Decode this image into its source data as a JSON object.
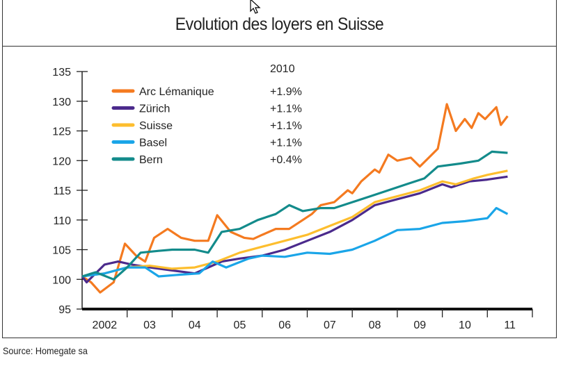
{
  "chart_data": {
    "type": "line",
    "title": "Evolution des loyers en Suisse",
    "source": "Source: Homegate sa",
    "xlabel": "",
    "ylabel": "",
    "ylim": [
      95,
      135
    ],
    "xlim": [
      2002,
      2012
    ],
    "yticks": [
      "95",
      "100",
      "105",
      "110",
      "115",
      "120",
      "125",
      "130",
      "135"
    ],
    "xtick_labels": [
      "2002",
      "03",
      "04",
      "05",
      "06",
      "07",
      "08",
      "09",
      "10",
      "11"
    ],
    "legend_header": "2010",
    "legend_position": "top-left",
    "grid": false,
    "series": [
      {
        "name": "Arc Lémanique",
        "change": "+1.9%",
        "color": "#F47A20",
        "x": [
          2002.0,
          2002.2,
          2002.4,
          2002.7,
          2002.95,
          2003.2,
          2003.4,
          2003.6,
          2003.9,
          2004.2,
          2004.5,
          2004.8,
          2005.0,
          2005.3,
          2005.6,
          2005.8,
          2006.0,
          2006.3,
          2006.6,
          2006.9,
          2007.1,
          2007.3,
          2007.6,
          2007.9,
          2008.0,
          2008.2,
          2008.5,
          2008.6,
          2008.8,
          2009.0,
          2009.3,
          2009.5,
          2009.7,
          2009.9,
          2010.1,
          2010.3,
          2010.5,
          2010.65,
          2010.8,
          2010.95,
          2011.2,
          2011.3,
          2011.45
        ],
        "y": [
          100.5,
          99.5,
          97.8,
          99.5,
          106,
          104,
          103,
          107,
          108.5,
          107,
          106.5,
          106.5,
          110.8,
          108,
          107,
          106.8,
          107.5,
          108.5,
          108.5,
          110,
          111,
          112.5,
          113,
          115,
          114.5,
          116.5,
          118.5,
          118,
          121,
          120,
          120.5,
          119,
          120.5,
          122,
          129.5,
          125,
          127,
          125.5,
          128,
          127,
          129,
          126,
          127.5
        ]
      },
      {
        "name": "Zürich",
        "change": "+1.1%",
        "color": "#4B2A8C",
        "x": [
          2002.0,
          2002.1,
          2002.5,
          2002.8,
          2003.1,
          2003.5,
          2004.0,
          2004.5,
          2004.8,
          2005.1,
          2005.5,
          2006.0,
          2006.5,
          2007.0,
          2007.5,
          2008.0,
          2008.5,
          2009.0,
          2009.5,
          2010.0,
          2010.2,
          2010.6,
          2011.0,
          2011.45
        ],
        "y": [
          100.5,
          99.5,
          102.5,
          103,
          102.5,
          102,
          101.5,
          101,
          102,
          103,
          103.5,
          104,
          105,
          106.5,
          108,
          110,
          112.5,
          113.5,
          114.5,
          116,
          115.5,
          116.5,
          116.8,
          117.3
        ]
      },
      {
        "name": "Suisse",
        "change": "+1.1%",
        "color": "#FDBE2E",
        "x": [
          2002.0,
          2002.5,
          2003.0,
          2003.5,
          2004.0,
          2004.5,
          2005.0,
          2005.5,
          2006.0,
          2006.5,
          2007.0,
          2007.5,
          2008.0,
          2008.5,
          2009.0,
          2009.5,
          2010.0,
          2010.3,
          2010.7,
          2011.0,
          2011.45
        ],
        "y": [
          100.5,
          101,
          102,
          102.3,
          101.8,
          102,
          103,
          104.5,
          105.5,
          106.5,
          107.5,
          109,
          110.5,
          113,
          114,
          115,
          116.5,
          116,
          117,
          117.6,
          118.3
        ]
      },
      {
        "name": "Basel",
        "change": "+1.1%",
        "color": "#1AA5E8",
        "x": [
          2002.0,
          2002.5,
          2003.0,
          2003.4,
          2003.7,
          2004.2,
          2004.6,
          2004.9,
          2005.2,
          2005.7,
          2006.0,
          2006.5,
          2007.0,
          2007.5,
          2008.0,
          2008.5,
          2009.0,
          2009.5,
          2010.0,
          2010.5,
          2011.0,
          2011.2,
          2011.45
        ],
        "y": [
          100.5,
          101,
          102,
          102,
          100.5,
          100.8,
          101,
          103,
          102,
          103.5,
          104,
          103.8,
          104.5,
          104.3,
          105,
          106.5,
          108.3,
          108.5,
          109.5,
          109.8,
          110.3,
          112,
          111
        ]
      },
      {
        "name": "Bern",
        "change": "+0.4%",
        "color": "#138B8B",
        "x": [
          2002.0,
          2002.3,
          2002.7,
          2003.0,
          2003.3,
          2003.7,
          2004.0,
          2004.5,
          2004.8,
          2005.1,
          2005.5,
          2005.9,
          2006.3,
          2006.6,
          2006.9,
          2007.3,
          2007.6,
          2008.0,
          2008.4,
          2008.8,
          2009.2,
          2009.6,
          2009.9,
          2010.4,
          2010.8,
          2011.1,
          2011.45
        ],
        "y": [
          100.5,
          101.2,
          100,
          102,
          104.5,
          104.8,
          105,
          105,
          104.5,
          108,
          108.5,
          110,
          111,
          112.5,
          111.5,
          112,
          112,
          113,
          114,
          115,
          116,
          117,
          119,
          119.5,
          120,
          121.5,
          121.3
        ]
      }
    ]
  }
}
